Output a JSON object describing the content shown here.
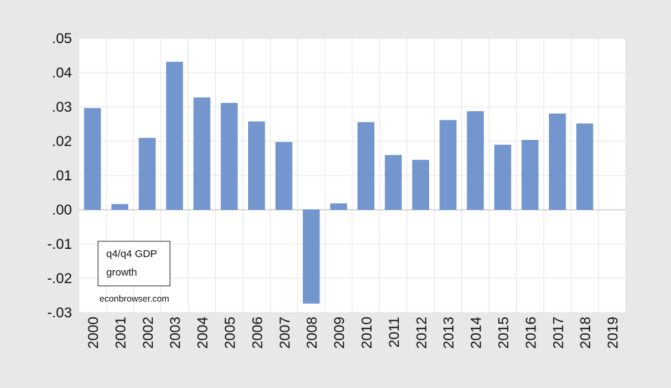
{
  "chart_data": {
    "type": "bar",
    "categories": [
      "2000",
      "2001",
      "2002",
      "2003",
      "2004",
      "2005",
      "2006",
      "2007",
      "2008",
      "2009",
      "2010",
      "2011",
      "2012",
      "2013",
      "2014",
      "2015",
      "2016",
      "2017",
      "2018",
      "2019"
    ],
    "values": [
      0.0296,
      0.0016,
      0.0209,
      0.0431,
      0.0327,
      0.0311,
      0.0257,
      0.0197,
      -0.0273,
      0.0018,
      0.0255,
      0.0159,
      0.0145,
      0.0261,
      0.0287,
      0.0189,
      0.0203,
      0.028,
      0.0251,
      null
    ],
    "ylim": [
      -0.03,
      0.05
    ],
    "yticks": [
      0.05,
      0.04,
      0.03,
      0.02,
      0.01,
      0.0,
      -0.01,
      -0.02,
      -0.03
    ],
    "ytick_labels": [
      ".05",
      ".04",
      ".03",
      ".02",
      ".01",
      ".00",
      "-.01",
      "-.02",
      "-.03"
    ],
    "bar_color": "#7396cf",
    "grid": true,
    "legend_box": {
      "line1": "q4/q4 GDP",
      "line2": "growth"
    },
    "annotation": "econbrowser.com"
  }
}
